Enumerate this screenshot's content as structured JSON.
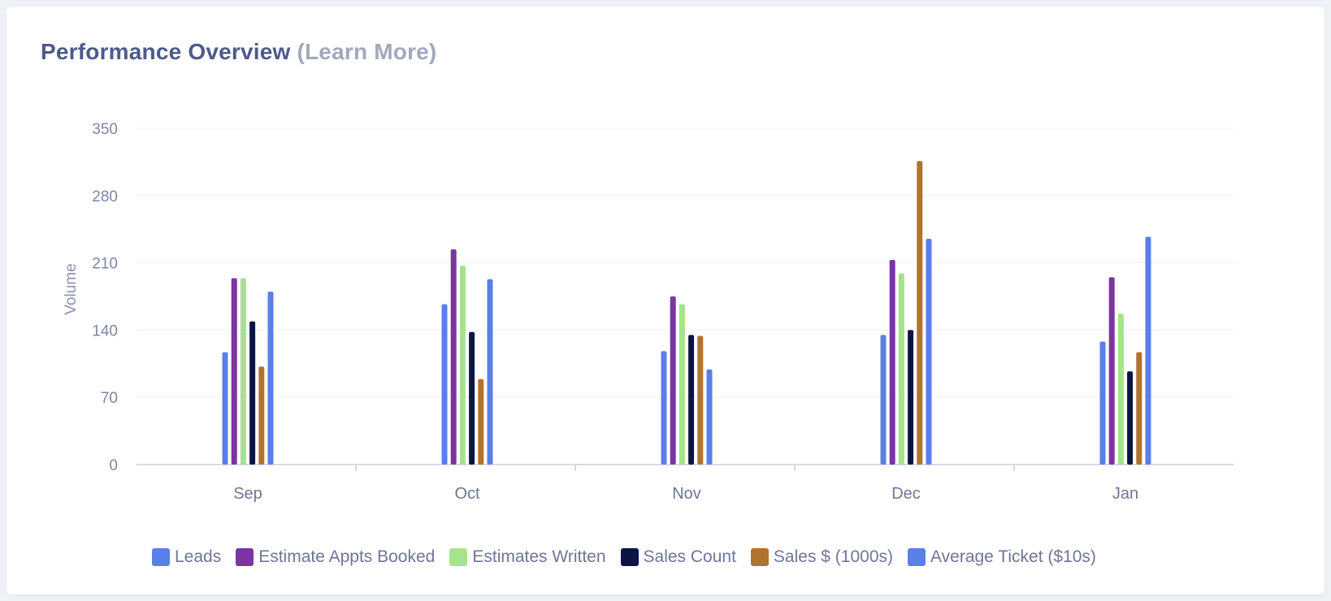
{
  "header": {
    "title": "Performance Overview",
    "learn_more": "(Learn More)"
  },
  "chart_data": {
    "type": "bar",
    "categories": [
      "Sep",
      "Oct",
      "Nov",
      "Dec",
      "Jan"
    ],
    "ylabel": "Volume",
    "xlabel": "",
    "ylim": [
      0,
      350
    ],
    "yticks": [
      0,
      70,
      140,
      210,
      280,
      350
    ],
    "grid": true,
    "legend_position": "bottom",
    "series": [
      {
        "name": "Leads",
        "color": "#5b7fe8",
        "values": [
          117,
          167,
          118,
          135,
          128
        ]
      },
      {
        "name": "Estimate Appts Booked",
        "color": "#7b35a0",
        "values": [
          194,
          224,
          175,
          213,
          195
        ]
      },
      {
        "name": "Estimates Written",
        "color": "#a3e48c",
        "values": [
          194,
          207,
          167,
          199,
          157
        ]
      },
      {
        "name": "Sales Count",
        "color": "#0c1445",
        "values": [
          149,
          138,
          135,
          140,
          97
        ]
      },
      {
        "name": "Sales $ (1000s)",
        "color": "#b2732f",
        "values": [
          102,
          89,
          134,
          316,
          117
        ]
      },
      {
        "name": "Average Ticket ($10s)",
        "color": "#5b7fe8",
        "values": [
          180,
          193,
          99,
          235,
          237
        ]
      }
    ]
  }
}
